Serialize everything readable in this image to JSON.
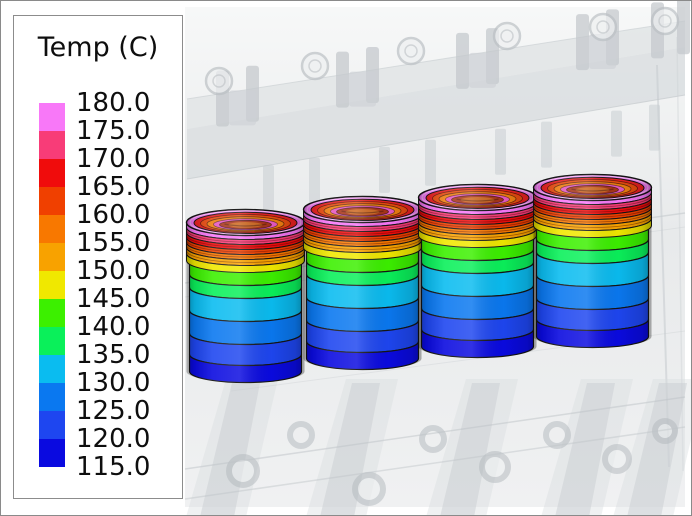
{
  "window": {
    "background": "#ffffff",
    "border_color": "#8a8a8a"
  },
  "legend": {
    "title": "Temp (C)",
    "labels": [
      "180.0",
      "175.0",
      "170.0",
      "165.0",
      "160.0",
      "155.0",
      "150.0",
      "145.0",
      "140.0",
      "135.0",
      "130.0",
      "125.0",
      "120.0",
      "115.0"
    ],
    "colors_top_to_bottom": [
      "#f878f8",
      "#f83c78",
      "#f00c0c",
      "#f04000",
      "#f87800",
      "#f8a200",
      "#f0e800",
      "#3cf000",
      "#0af05a",
      "#0abcf0",
      "#0a78f0",
      "#1e46f0",
      "#0a0ae0"
    ],
    "panel_bg": "#ffffff",
    "panel_border": "#8c8c8c",
    "text_color": "#0e0e0e"
  },
  "scene": {
    "cylinder_count": 4,
    "bore_colors": [
      "#e62020",
      "#e64b10",
      "#ee7e12",
      "#e658c0",
      "#a83418",
      "#ce6a20"
    ],
    "block_ghost_color": "#d9dde0"
  },
  "chart_data": {
    "type": "heatmap",
    "title": "Temp (C)",
    "units": "C",
    "levels": [
      115.0,
      120.0,
      125.0,
      130.0,
      135.0,
      140.0,
      145.0,
      150.0,
      155.0,
      160.0,
      165.0,
      170.0,
      175.0,
      180.0
    ],
    "band_colors_low_to_high": [
      "#0a0ae0",
      "#1e46f0",
      "#0a78f0",
      "#0abcf0",
      "#0af05a",
      "#3cf000",
      "#f0e800",
      "#f8a200",
      "#f87800",
      "#f04000",
      "#f00c0c",
      "#f83c78",
      "#f878f8"
    ],
    "legend_position": "left",
    "description": "Temperature contour bands on four engine cylinder liners inside a translucent gray engine block; hottest (~180 C, pink/red) at the top rims grading through yellow, green and cyan to coolest (~115 C, dark blue) at the liner bottoms"
  }
}
